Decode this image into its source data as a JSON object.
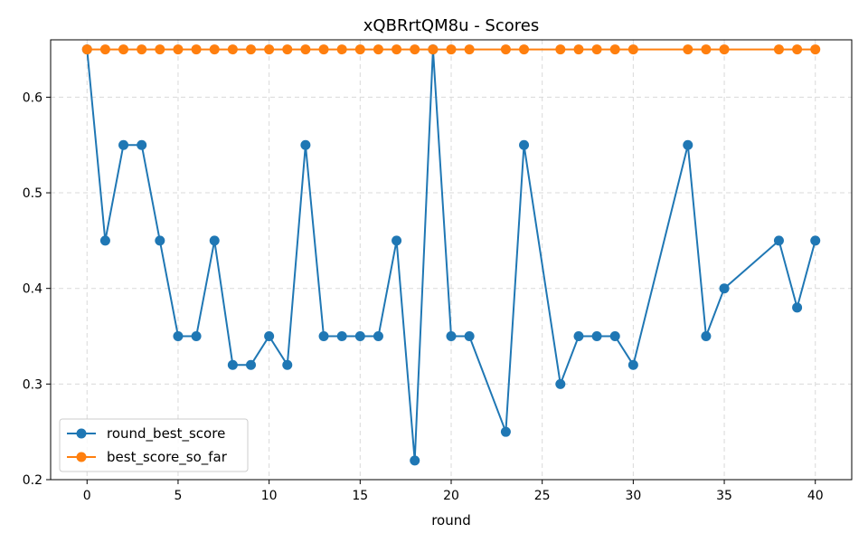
{
  "chart_data": {
    "type": "line",
    "title": "xQBRrtQM8u - Scores",
    "xlabel": "round",
    "ylabel": "",
    "xlim": [
      -2,
      42
    ],
    "ylim": [
      0.2,
      0.66
    ],
    "xticks": [
      0,
      5,
      10,
      15,
      20,
      25,
      30,
      35,
      40
    ],
    "yticks": [
      0.2,
      0.3,
      0.4,
      0.5,
      0.6
    ],
    "grid": true,
    "legend_position": "lower-left",
    "series": [
      {
        "name": "round_best_score",
        "color": "#1f77b4",
        "x": [
          0,
          1,
          2,
          3,
          4,
          5,
          6,
          7,
          8,
          9,
          10,
          11,
          12,
          13,
          14,
          15,
          16,
          17,
          18,
          19,
          20,
          21,
          23,
          24,
          26,
          27,
          28,
          29,
          30,
          33,
          34,
          35,
          38,
          39,
          40
        ],
        "y": [
          0.65,
          0.45,
          0.55,
          0.55,
          0.45,
          0.35,
          0.35,
          0.45,
          0.32,
          0.32,
          0.35,
          0.32,
          0.55,
          0.35,
          0.35,
          0.35,
          0.35,
          0.45,
          0.22,
          0.65,
          0.35,
          0.35,
          0.25,
          0.55,
          0.3,
          0.35,
          0.35,
          0.35,
          0.32,
          0.55,
          0.35,
          0.4,
          0.45,
          0.38,
          0.45
        ]
      },
      {
        "name": "best_score_so_far",
        "color": "#ff7f0e",
        "x": [
          0,
          1,
          2,
          3,
          4,
          5,
          6,
          7,
          8,
          9,
          10,
          11,
          12,
          13,
          14,
          15,
          16,
          17,
          18,
          19,
          20,
          21,
          23,
          24,
          26,
          27,
          28,
          29,
          30,
          33,
          34,
          35,
          38,
          39,
          40
        ],
        "y": [
          0.65,
          0.65,
          0.65,
          0.65,
          0.65,
          0.65,
          0.65,
          0.65,
          0.65,
          0.65,
          0.65,
          0.65,
          0.65,
          0.65,
          0.65,
          0.65,
          0.65,
          0.65,
          0.65,
          0.65,
          0.65,
          0.65,
          0.65,
          0.65,
          0.65,
          0.65,
          0.65,
          0.65,
          0.65,
          0.65,
          0.65,
          0.65,
          0.65,
          0.65,
          0.65
        ]
      }
    ]
  }
}
